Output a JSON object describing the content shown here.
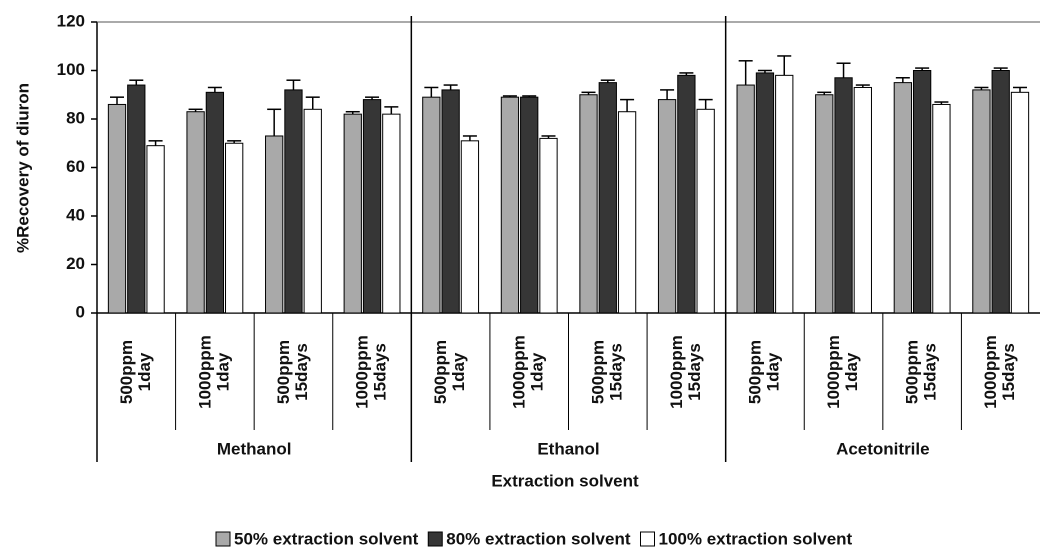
{
  "chart_data": {
    "type": "bar",
    "y_label": "%Recovery of diuron",
    "x_label": "Extraction solvent",
    "ylim": [
      0,
      120
    ],
    "yticks": [
      0,
      20,
      40,
      60,
      80,
      100,
      120
    ],
    "groups": [
      {
        "name": "Methanol",
        "categories": [
          [
            "500ppm",
            "1day"
          ],
          [
            "1000ppm",
            "1day"
          ],
          [
            "500ppm",
            "15days"
          ],
          [
            "1000ppm",
            "15days"
          ]
        ]
      },
      {
        "name": "Ethanol",
        "categories": [
          [
            "500ppm",
            "1day"
          ],
          [
            "1000ppm",
            "1day"
          ],
          [
            "500ppm",
            "15days"
          ],
          [
            "1000ppm",
            "15days"
          ]
        ]
      },
      {
        "name": "Acetonitrile",
        "categories": [
          [
            "500ppm",
            "1day"
          ],
          [
            "1000ppm",
            "1day"
          ],
          [
            "500ppm",
            "15days"
          ],
          [
            "1000ppm",
            "15days"
          ]
        ]
      }
    ],
    "series": [
      {
        "name": "50% extraction solvent",
        "color": "#a9a9a9",
        "values": [
          86,
          83,
          73,
          82,
          89,
          89,
          90,
          88,
          94,
          90,
          95,
          92
        ],
        "errors": [
          3,
          1,
          11,
          1,
          4,
          0.5,
          1,
          4,
          10,
          1,
          2,
          1
        ]
      },
      {
        "name": "80% extraction solvent",
        "color": "#363636",
        "values": [
          94,
          91,
          92,
          88,
          92,
          89,
          95,
          98,
          99,
          97,
          100,
          100
        ],
        "errors": [
          2,
          2,
          4,
          1,
          2,
          0.5,
          1,
          1,
          1,
          6,
          1,
          1
        ]
      },
      {
        "name": "100% extraction solvent",
        "color": "#ffffff",
        "values": [
          69,
          70,
          84,
          82,
          71,
          72,
          83,
          84,
          98,
          93,
          86,
          91
        ],
        "errors": [
          2,
          1,
          5,
          3,
          2,
          1,
          5,
          4,
          8,
          1,
          1,
          2
        ]
      }
    ]
  }
}
